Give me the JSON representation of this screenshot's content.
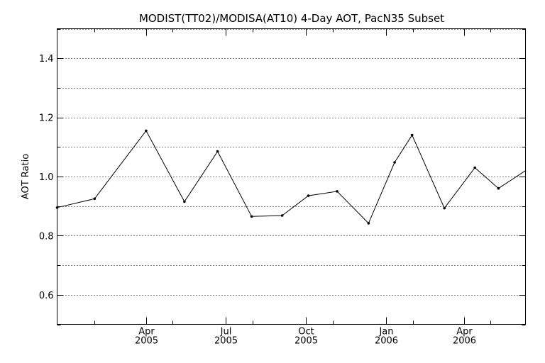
{
  "chart_data": {
    "type": "line",
    "title": "MODIST(TT02)/MODISA(AT10) 4-Day AOT, PacN35 Subset",
    "xlabel": "",
    "ylabel": "AOT Ratio",
    "xlim": [
      "2004-12-20",
      "2006-06-10"
    ],
    "ylim": [
      0.5,
      1.5
    ],
    "yticks": [
      0.6,
      0.8,
      1.0,
      1.2,
      1.4
    ],
    "ytick_labels": [
      "0.6",
      "0.8",
      "1.0",
      "1.2",
      "1.4"
    ],
    "yminor": [
      0.5,
      0.7,
      0.9,
      1.1,
      1.3,
      1.5
    ],
    "grid": true,
    "xticks_major": [
      {
        "date": "2005-04-01",
        "month": "Apr",
        "year": "2005"
      },
      {
        "date": "2005-07-01",
        "month": "Jul",
        "year": "2005"
      },
      {
        "date": "2005-10-01",
        "month": "Oct",
        "year": "2005"
      },
      {
        "date": "2006-01-01",
        "month": "Jan",
        "year": "2006"
      },
      {
        "date": "2006-04-01",
        "month": "Apr",
        "year": "2006"
      }
    ],
    "xticks_minor": [
      "2005-02-01",
      "2005-05-01",
      "2005-08-01",
      "2005-11-01",
      "2006-02-01",
      "2006-05-01"
    ],
    "x": [
      "2004-12-20",
      "2005-02-01",
      "2005-04-01",
      "2005-05-15",
      "2005-06-22",
      "2005-07-31",
      "2005-09-04",
      "2005-10-04",
      "2005-11-06",
      "2005-12-12",
      "2006-01-11",
      "2006-01-31",
      "2006-03-09",
      "2006-04-13",
      "2006-05-10",
      "2006-06-10"
    ],
    "y": [
      0.895,
      0.925,
      1.155,
      0.915,
      1.085,
      0.865,
      0.868,
      0.935,
      0.95,
      0.842,
      1.048,
      1.14,
      0.893,
      1.03,
      0.96,
      1.02
    ]
  }
}
